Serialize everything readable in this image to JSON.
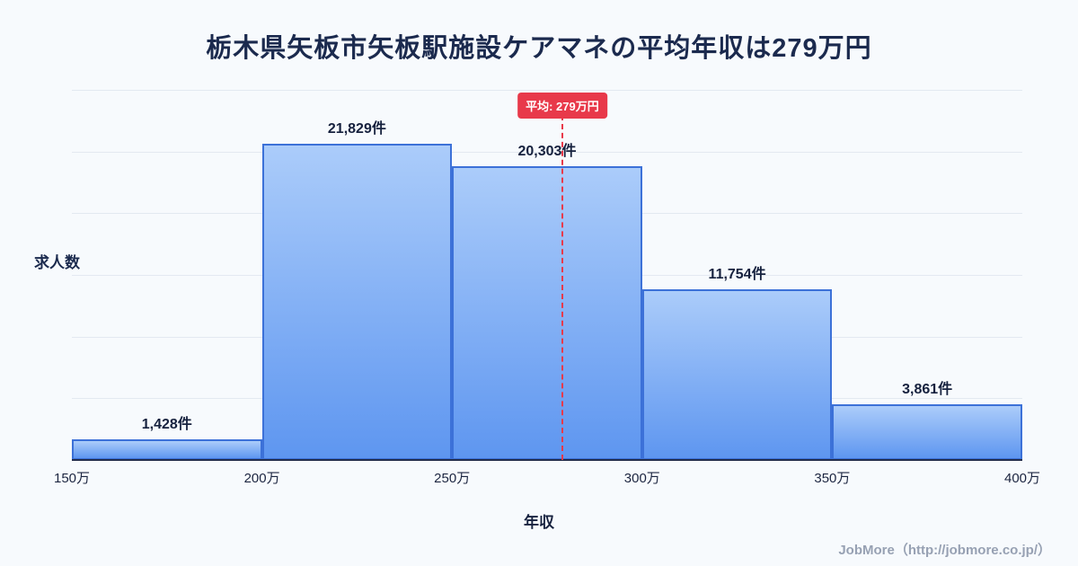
{
  "title": "栃木県矢板市矢板駅施設ケアマネの平均年収は279万円",
  "footer": "JobMore（http://jobmore.co.jp/）",
  "colors": {
    "background": "#f7fafd",
    "title_text": "#1b2a4e",
    "bar_fill_top": "#abccfa",
    "bar_fill_bottom": "#5e96f0",
    "bar_border": "#3c71d8",
    "average_red": "#e8394a",
    "gridline": "#e3e9f1",
    "axis": "#232e4d",
    "footer_text": "#97a1b3"
  },
  "chart_data": {
    "type": "bar",
    "title": "栃木県矢板市矢板駅施設ケアマネの平均年収は279万円",
    "categories": [
      "150万-200万",
      "200万-250万",
      "250万-300万",
      "300万-350万",
      "350万-400万"
    ],
    "values": [
      1428,
      21829,
      20303,
      11754,
      3861
    ],
    "value_labels": [
      "1,428件",
      "21,829件",
      "20,303件",
      "11,754件",
      "3,861件"
    ],
    "x_ticks": [
      "150万",
      "200万",
      "250万",
      "300万",
      "350万",
      "400万"
    ],
    "x_range": [
      150,
      400
    ],
    "ylim": [
      0,
      21829
    ],
    "xlabel": "年収",
    "ylabel": "求人数",
    "grid": true,
    "legend": "none",
    "average_line": {
      "value": 279,
      "label": "平均: 279万円"
    }
  }
}
